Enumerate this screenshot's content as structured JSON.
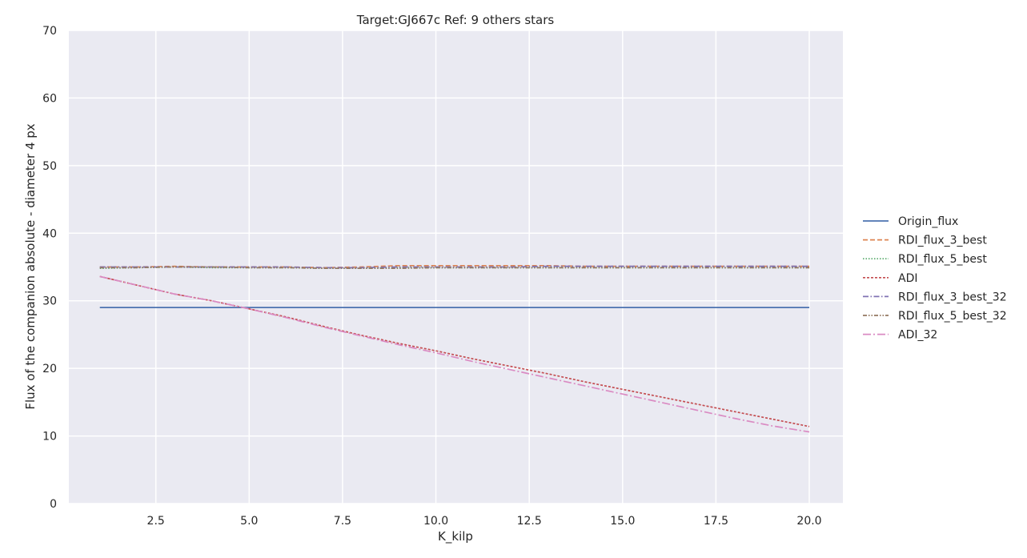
{
  "chart_data": {
    "type": "line",
    "title": "Target:GJ667c Ref: 9 others stars",
    "xlabel": "K_kilp",
    "ylabel": "Flux of the companion absolute - diameter 4 px",
    "xlim": [
      0.17,
      20.9
    ],
    "ylim": [
      0,
      70
    ],
    "xticks": [
      2.5,
      5.0,
      7.5,
      10.0,
      12.5,
      15.0,
      17.5,
      20.0
    ],
    "xtick_labels": [
      "2.5",
      "5.0",
      "7.5",
      "10.0",
      "12.5",
      "15.0",
      "17.5",
      "20.0"
    ],
    "yticks": [
      0,
      10,
      20,
      30,
      40,
      50,
      60,
      70
    ],
    "ytick_labels": [
      "0",
      "10",
      "20",
      "30",
      "40",
      "50",
      "60",
      "70"
    ],
    "grid": true,
    "legend_position": "outside-right",
    "x": [
      1,
      2,
      3,
      4,
      5,
      6,
      7,
      8,
      9,
      10,
      11,
      12,
      13,
      14,
      15,
      16,
      17,
      18,
      19,
      20
    ],
    "series": [
      {
        "name": "Origin_flux",
        "color": "#4c72b0",
        "dash": "solid",
        "values": [
          29,
          29,
          29,
          29,
          29,
          29,
          29,
          29,
          29,
          29,
          29,
          29,
          29,
          29,
          29,
          29,
          29,
          29,
          29,
          29
        ]
      },
      {
        "name": "RDI_flux_3_best",
        "color": "#dd8452",
        "dash": "dashed",
        "values": [
          35.0,
          35.0,
          35.1,
          35.0,
          35.0,
          35.0,
          34.9,
          35.0,
          35.2,
          35.2,
          35.2,
          35.2,
          35.2,
          35.1,
          35.1,
          35.1,
          35.1,
          35.1,
          35.1,
          35.1
        ]
      },
      {
        "name": "RDI_flux_5_best",
        "color": "#55a868",
        "dash": "dotted",
        "values": [
          34.8,
          34.9,
          35.0,
          34.9,
          34.9,
          34.9,
          34.8,
          34.8,
          34.9,
          34.9,
          34.9,
          34.9,
          34.9,
          34.9,
          34.9,
          34.9,
          34.9,
          34.9,
          34.9,
          34.9
        ]
      },
      {
        "name": "ADI",
        "color": "#c44e52",
        "dash": "densedash",
        "values": [
          33.6,
          32.3,
          31.0,
          30.0,
          28.8,
          27.6,
          26.2,
          24.9,
          23.7,
          22.6,
          21.4,
          20.3,
          19.2,
          18.0,
          16.9,
          15.8,
          14.7,
          13.6,
          12.5,
          11.4
        ]
      },
      {
        "name": "RDI_flux_3_best_32",
        "color": "#8172b3",
        "dash": "dashdot",
        "values": [
          35.0,
          35.0,
          35.0,
          35.0,
          35.0,
          35.0,
          34.9,
          34.9,
          35.0,
          35.0,
          35.0,
          35.0,
          35.1,
          35.1,
          35.1,
          35.1,
          35.1,
          35.1,
          35.1,
          35.1
        ]
      },
      {
        "name": "RDI_flux_5_best_32",
        "color": "#937860",
        "dash": "dashdotdot",
        "values": [
          34.9,
          34.9,
          35.0,
          35.0,
          34.9,
          34.9,
          34.8,
          34.8,
          34.8,
          34.9,
          34.9,
          34.9,
          34.9,
          34.9,
          34.9,
          34.9,
          34.9,
          34.9,
          34.9,
          34.9
        ]
      },
      {
        "name": "ADI_32",
        "color": "#da8bc3",
        "dash": "longdashdot",
        "values": [
          33.6,
          32.3,
          31.0,
          30.0,
          28.8,
          27.5,
          26.1,
          24.8,
          23.5,
          22.3,
          21.0,
          19.8,
          18.6,
          17.4,
          16.2,
          15.0,
          13.8,
          12.6,
          11.5,
          10.6
        ]
      }
    ]
  }
}
